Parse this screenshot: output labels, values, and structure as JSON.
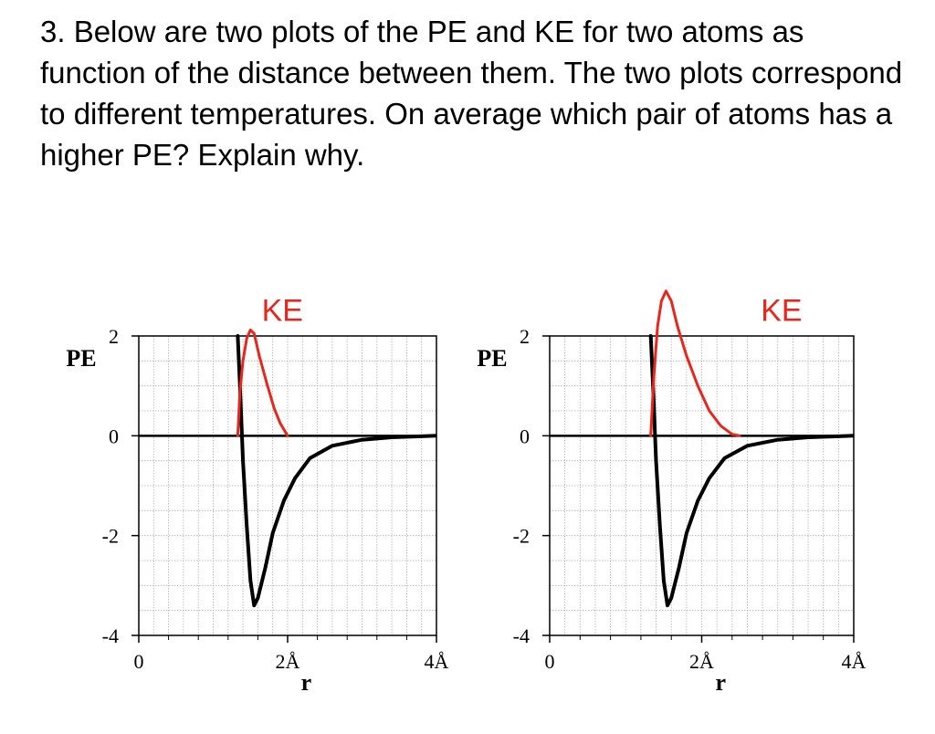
{
  "question": {
    "text": "3. Below are two plots of the PE and KE for two atoms as function of the distance between them. The two plots correspond to different temperatures. On average which pair of atoms has a higher PE? Explain why."
  },
  "colors": {
    "pe_curve": "#000000",
    "ke_curve": "#e8261c",
    "grid": "#b0b0b0"
  },
  "chart_data": [
    {
      "type": "line",
      "ylabel": "PE",
      "xlabel": "r",
      "xlim": [
        0,
        4
      ],
      "ylim": [
        -4,
        2
      ],
      "x_ticks": [
        {
          "value": 0,
          "label": "0"
        },
        {
          "value": 2,
          "label": "2Å"
        },
        {
          "value": 4,
          "label": "4Å"
        }
      ],
      "y_ticks": [
        {
          "value": 2,
          "label": "2"
        },
        {
          "value": 0,
          "label": "0"
        },
        {
          "value": -2,
          "label": "-2"
        },
        {
          "value": -4,
          "label": "-4"
        }
      ],
      "grid": true,
      "series": [
        {
          "name": "",
          "x": [
            1.33,
            1.36,
            1.4,
            1.45,
            1.5,
            1.55,
            1.6,
            1.7,
            1.8,
            1.95,
            2.1,
            2.3,
            2.6,
            3.0,
            3.4,
            3.8,
            4.0
          ],
          "y": [
            2.0,
            1.0,
            -0.5,
            -1.8,
            -2.9,
            -3.4,
            -3.25,
            -2.65,
            -1.95,
            -1.3,
            -0.85,
            -0.45,
            -0.2,
            -0.08,
            -0.03,
            -0.01,
            0.0
          ]
        },
        {
          "name": "KE",
          "x": [
            1.33,
            1.36,
            1.4,
            1.45,
            1.5,
            1.55,
            1.62,
            1.72,
            1.82,
            1.9,
            2.0
          ],
          "y": [
            0.0,
            0.9,
            1.5,
            1.95,
            2.12,
            2.05,
            1.6,
            1.05,
            0.55,
            0.25,
            0.0
          ]
        }
      ],
      "annotations": [
        {
          "text": "KE",
          "x": 1.93,
          "y": 2.3
        }
      ]
    },
    {
      "type": "line",
      "ylabel": "PE",
      "xlabel": "r",
      "xlim": [
        0,
        4
      ],
      "ylim": [
        -4,
        2
      ],
      "x_ticks": [
        {
          "value": 0,
          "label": "0"
        },
        {
          "value": 2,
          "label": "2Å"
        },
        {
          "value": 4,
          "label": "4Å"
        }
      ],
      "y_ticks": [
        {
          "value": 2,
          "label": "2"
        },
        {
          "value": 0,
          "label": "0"
        },
        {
          "value": -2,
          "label": "-2"
        },
        {
          "value": -4,
          "label": "-4"
        }
      ],
      "grid": true,
      "series": [
        {
          "name": "",
          "x": [
            1.33,
            1.36,
            1.4,
            1.45,
            1.5,
            1.55,
            1.6,
            1.7,
            1.8,
            1.95,
            2.1,
            2.3,
            2.6,
            3.0,
            3.4,
            3.8,
            4.0
          ],
          "y": [
            2.0,
            1.0,
            -0.5,
            -1.8,
            -2.9,
            -3.4,
            -3.25,
            -2.65,
            -1.95,
            -1.3,
            -0.85,
            -0.45,
            -0.2,
            -0.08,
            -0.03,
            -0.01,
            0.0
          ]
        },
        {
          "name": "KE",
          "x": [
            1.33,
            1.37,
            1.42,
            1.47,
            1.53,
            1.6,
            1.68,
            1.8,
            1.95,
            2.1,
            2.25,
            2.4,
            2.5
          ],
          "y": [
            0.0,
            1.2,
            2.2,
            2.7,
            2.9,
            2.7,
            2.2,
            1.6,
            1.0,
            0.5,
            0.2,
            0.03,
            0.0
          ]
        }
      ],
      "annotations": [
        {
          "text": "KE",
          "x": 3.05,
          "y": 2.3
        }
      ]
    }
  ]
}
